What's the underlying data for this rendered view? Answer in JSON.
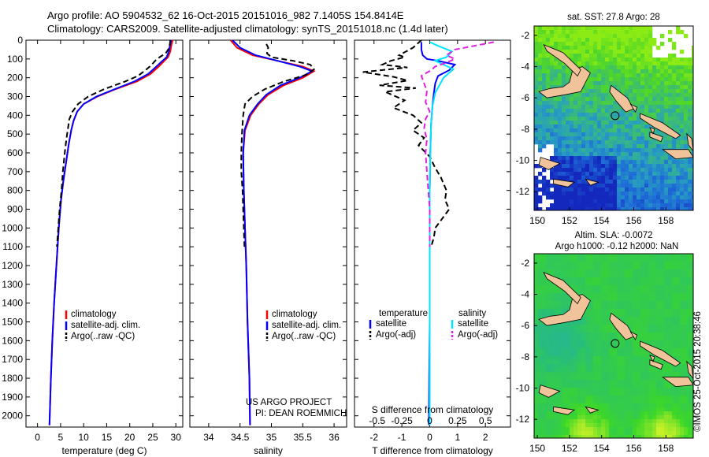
{
  "header": {
    "line1": "Argo profile: AO 5904532_62 16-Oct-2015 20151016_982 7.1405S 154.8414E",
    "line2": "Climatology: CARS2009. Satellite-adjusted climatology: synTS_20151018.nc (1.4d later)"
  },
  "colors": {
    "climatology": "#ff0000",
    "satellite": "#0000ff",
    "argo": "#000000",
    "sat_salinity": "#00e5ff",
    "argo_salinity": "#e020e0",
    "land": "#f0c39a"
  },
  "chart_data": [
    {
      "type": "line",
      "name": "temperature",
      "xlabel": "temperature (deg C)",
      "xlim": [
        -2.5,
        31.5
      ],
      "ylim": [
        0,
        2060
      ],
      "xticks": [
        0,
        5,
        10,
        15,
        20,
        25,
        30
      ],
      "yticks": [
        0,
        100,
        200,
        300,
        400,
        500,
        600,
        700,
        800,
        900,
        1000,
        1100,
        1200,
        1300,
        1400,
        1500,
        1600,
        1700,
        1800,
        1900,
        2000
      ],
      "legend": [
        "climatology",
        "satellite-adj. clim.",
        "Argo(..raw -QC)"
      ],
      "series": [
        {
          "name": "climatology",
          "points": [
            [
              29.3,
              0
            ],
            [
              29.0,
              30
            ],
            [
              28.8,
              60
            ],
            [
              28.3,
              90
            ],
            [
              27.5,
              110
            ],
            [
              26.3,
              140
            ],
            [
              24.5,
              180
            ],
            [
              21.5,
              220
            ],
            [
              17.0,
              260
            ],
            [
              13.0,
              300
            ],
            [
              10.0,
              340
            ],
            [
              8.6,
              380
            ],
            [
              7.8,
              430
            ],
            [
              7.3,
              480
            ],
            [
              6.8,
              550
            ],
            [
              6.2,
              650
            ],
            [
              5.6,
              750
            ],
            [
              5.1,
              850
            ],
            [
              4.6,
              1000
            ],
            [
              4.1,
              1200
            ],
            [
              3.6,
              1400
            ],
            [
              3.2,
              1600
            ],
            [
              2.9,
              1800
            ],
            [
              2.6,
              2050
            ]
          ]
        },
        {
          "name": "satellite-adj. clim.",
          "points": [
            [
              29.0,
              0
            ],
            [
              28.7,
              30
            ],
            [
              28.5,
              60
            ],
            [
              28.0,
              90
            ],
            [
              27.1,
              110
            ],
            [
              25.8,
              140
            ],
            [
              24.0,
              180
            ],
            [
              21.0,
              220
            ],
            [
              16.8,
              260
            ],
            [
              12.8,
              300
            ],
            [
              10.0,
              340
            ],
            [
              8.6,
              380
            ],
            [
              7.8,
              430
            ],
            [
              7.3,
              480
            ],
            [
              6.8,
              550
            ],
            [
              6.2,
              650
            ],
            [
              5.6,
              750
            ],
            [
              5.1,
              850
            ],
            [
              4.6,
              1000
            ],
            [
              4.1,
              1200
            ],
            [
              3.6,
              1400
            ],
            [
              3.2,
              1600
            ],
            [
              2.9,
              1800
            ],
            [
              2.6,
              2050
            ]
          ]
        },
        {
          "name": "Argo(..raw -QC)",
          "points": [
            [
              28.8,
              0
            ],
            [
              28.6,
              40
            ],
            [
              27.8,
              70
            ],
            [
              26.5,
              90
            ],
            [
              25.5,
              110
            ],
            [
              24.6,
              135
            ],
            [
              23.4,
              160
            ],
            [
              21.8,
              190
            ],
            [
              19.0,
              220
            ],
            [
              14.5,
              260
            ],
            [
              11.0,
              300
            ],
            [
              8.8,
              340
            ],
            [
              7.6,
              380
            ],
            [
              6.9,
              420
            ],
            [
              6.6,
              470
            ],
            [
              6.3,
              520
            ],
            [
              5.9,
              600
            ],
            [
              5.5,
              700
            ],
            [
              5.2,
              800
            ],
            [
              4.8,
              900
            ],
            [
              4.5,
              1000
            ],
            [
              4.2,
              1100
            ]
          ]
        }
      ]
    },
    {
      "type": "line",
      "name": "salinity",
      "xlabel": "salinity",
      "xlim": [
        33.7,
        36.2
      ],
      "ylim": [
        0,
        2060
      ],
      "xticks": [
        34,
        34.5,
        35,
        35.5,
        36
      ],
      "legend": [
        "climatology",
        "satellite-adj. clim.",
        "Argo(..raw -QC)"
      ],
      "series": [
        {
          "name": "climatology",
          "points": [
            [
              34.35,
              0
            ],
            [
              34.45,
              40
            ],
            [
              34.7,
              80
            ],
            [
              35.1,
              110
            ],
            [
              35.5,
              140
            ],
            [
              35.68,
              165
            ],
            [
              35.5,
              200
            ],
            [
              35.2,
              240
            ],
            [
              34.95,
              290
            ],
            [
              34.8,
              340
            ],
            [
              34.67,
              400
            ],
            [
              34.58,
              480
            ],
            [
              34.55,
              600
            ],
            [
              34.56,
              800
            ],
            [
              34.58,
              1000
            ],
            [
              34.6,
              1200
            ],
            [
              34.62,
              1500
            ],
            [
              34.65,
              1800
            ],
            [
              34.66,
              2050
            ]
          ]
        },
        {
          "name": "satellite-adj. clim.",
          "points": [
            [
              34.38,
              0
            ],
            [
              34.5,
              40
            ],
            [
              34.75,
              80
            ],
            [
              35.1,
              110
            ],
            [
              35.45,
              140
            ],
            [
              35.65,
              165
            ],
            [
              35.45,
              200
            ],
            [
              35.15,
              240
            ],
            [
              34.92,
              290
            ],
            [
              34.78,
              340
            ],
            [
              34.65,
              400
            ],
            [
              34.57,
              480
            ],
            [
              34.55,
              600
            ],
            [
              34.56,
              800
            ],
            [
              34.58,
              1000
            ],
            [
              34.6,
              1200
            ],
            [
              34.62,
              1500
            ],
            [
              34.65,
              1800
            ],
            [
              34.66,
              2050
            ]
          ]
        },
        {
          "name": "Argo(..raw -QC)",
          "points": [
            [
              34.92,
              20
            ],
            [
              34.95,
              40
            ],
            [
              34.93,
              70
            ],
            [
              35.0,
              90
            ],
            [
              35.35,
              110
            ],
            [
              35.62,
              130
            ],
            [
              35.68,
              155
            ],
            [
              35.55,
              185
            ],
            [
              35.2,
              220
            ],
            [
              34.9,
              260
            ],
            [
              34.7,
              300
            ],
            [
              34.58,
              340
            ],
            [
              34.55,
              400
            ],
            [
              34.53,
              500
            ],
            [
              34.52,
              600
            ],
            [
              34.52,
              700
            ],
            [
              34.54,
              800
            ],
            [
              34.55,
              900
            ],
            [
              34.56,
              1000
            ],
            [
              34.57,
              1100
            ]
          ]
        }
      ]
    },
    {
      "type": "line",
      "name": "difference",
      "xlabel": "T difference from climatology",
      "xlabel_top": "S difference from climatology",
      "xlim": [
        -2.7,
        2.9
      ],
      "ylim": [
        0,
        2060
      ],
      "xticks": [
        -2,
        -1,
        0,
        1,
        2
      ],
      "xticks_top_labels": [
        "-0.5",
        "-0.25",
        "0",
        "0.25",
        "0.5"
      ],
      "xticks_top_positions": [
        -2,
        -1,
        0,
        1,
        2
      ],
      "legend": [
        "temperature",
        "satellite",
        "Argo(-adj)",
        "salinity",
        "satellite",
        "Argo(-adj)"
      ],
      "series": [
        {
          "name": "temperature satellite",
          "points": [
            [
              -0.3,
              10
            ],
            [
              -0.3,
              50
            ],
            [
              -0.25,
              80
            ],
            [
              -0.1,
              100
            ],
            [
              0.3,
              110
            ],
            [
              0.9,
              130
            ],
            [
              0.7,
              160
            ],
            [
              0.3,
              190
            ],
            [
              0.2,
              230
            ],
            [
              0.15,
              280
            ],
            [
              0.1,
              350
            ],
            [
              0.05,
              450
            ],
            [
              0.02,
              600
            ],
            [
              0.0,
              800
            ],
            [
              0.0,
              1100
            ],
            [
              0.0,
              1500
            ],
            [
              -0.02,
              1800
            ],
            [
              -0.03,
              2050
            ]
          ]
        },
        {
          "name": "temperature Argo(-adj)",
          "points": [
            [
              -0.3,
              0
            ],
            [
              -0.6,
              40
            ],
            [
              -1.1,
              80
            ],
            [
              -0.9,
              90
            ],
            [
              -1.4,
              110
            ],
            [
              -1.7,
              130
            ],
            [
              -0.8,
              145
            ],
            [
              -2.4,
              170
            ],
            [
              -1.3,
              195
            ],
            [
              -0.8,
              215
            ],
            [
              -1.8,
              240
            ],
            [
              -0.5,
              255
            ],
            [
              -1.6,
              275
            ],
            [
              -0.9,
              320
            ],
            [
              -1.3,
              360
            ],
            [
              -0.6,
              400
            ],
            [
              -0.3,
              440
            ],
            [
              -0.6,
              480
            ],
            [
              -0.2,
              520
            ],
            [
              -0.4,
              560
            ],
            [
              0.0,
              620
            ],
            [
              0.2,
              680
            ],
            [
              0.4,
              730
            ],
            [
              0.6,
              800
            ],
            [
              0.55,
              850
            ],
            [
              0.7,
              900
            ],
            [
              0.4,
              960
            ],
            [
              0.2,
              1000
            ],
            [
              0.15,
              1050
            ],
            [
              0.05,
              1100
            ]
          ]
        },
        {
          "name": "salinity satellite",
          "points": [
            [
              0.0,
              10
            ],
            [
              0.3,
              30
            ],
            [
              0.8,
              60
            ],
            [
              0.6,
              90
            ],
            [
              0.2,
              110
            ],
            [
              0.5,
              130
            ],
            [
              0.85,
              155
            ],
            [
              0.5,
              200
            ],
            [
              0.35,
              240
            ],
            [
              0.2,
              280
            ],
            [
              0.1,
              350
            ],
            [
              0.05,
              450
            ],
            [
              0.02,
              600
            ],
            [
              0.0,
              800
            ],
            [
              0.0,
              1100
            ],
            [
              0.0,
              1500
            ],
            [
              0.0,
              1800
            ],
            [
              0.0,
              2050
            ]
          ]
        },
        {
          "name": "salinity Argo(-adj)",
          "points": [
            [
              2.3,
              10
            ],
            [
              1.6,
              30
            ],
            [
              0.9,
              50
            ],
            [
              0.6,
              80
            ],
            [
              0.9,
              100
            ],
            [
              0.6,
              120
            ],
            [
              0.2,
              140
            ],
            [
              0.05,
              160
            ],
            [
              -0.3,
              190
            ],
            [
              -0.2,
              230
            ],
            [
              -0.1,
              270
            ],
            [
              -0.15,
              330
            ],
            [
              0.0,
              380
            ],
            [
              -0.15,
              420
            ],
            [
              -0.2,
              470
            ],
            [
              -0.1,
              530
            ],
            [
              -0.15,
              600
            ],
            [
              -0.1,
              700
            ],
            [
              -0.05,
              800
            ],
            [
              0.0,
              900
            ],
            [
              0.0,
              1000
            ],
            [
              0.0,
              1100
            ]
          ]
        }
      ]
    },
    {
      "type": "heatmap",
      "name": "sst-map",
      "title": "sat. SST: 27.8 Argo: 28",
      "xticks": [
        150,
        152,
        154,
        156,
        158
      ],
      "yticks": [
        -2,
        -4,
        -6,
        -8,
        -10,
        -12
      ],
      "xlim": [
        149.8,
        159.7
      ],
      "ylim": [
        -13.2,
        -1.4
      ],
      "marker": {
        "lon": 154.84,
        "lat": -7.14
      }
    },
    {
      "type": "heatmap",
      "name": "sla-map",
      "title_line1": "Altim. SLA: -0.0072",
      "title_line2": "Argo h1000: -0.12 h2000: NaN",
      "xticks": [
        150,
        152,
        154,
        156,
        158
      ],
      "yticks": [
        -2,
        -4,
        -6,
        -8,
        -10,
        -12
      ],
      "xlim": [
        149.8,
        159.7
      ],
      "ylim": [
        -13.2,
        -1.4
      ],
      "marker": {
        "lon": 154.84,
        "lat": -7.14
      }
    }
  ],
  "credits": {
    "project": "US ARGO PROJECT",
    "pi": "PI: DEAN ROEMMICH",
    "watermark": "©IMOS 25-Oct-2015 20:38:46"
  }
}
